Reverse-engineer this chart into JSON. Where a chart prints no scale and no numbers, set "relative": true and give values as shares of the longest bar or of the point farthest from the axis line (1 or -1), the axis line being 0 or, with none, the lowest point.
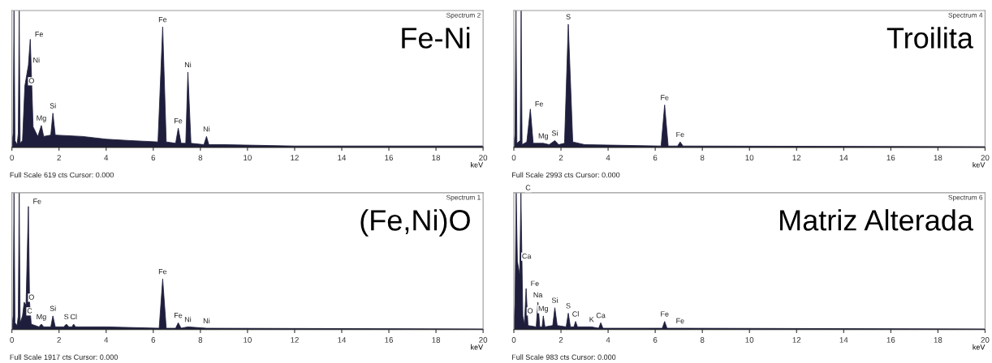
{
  "chart_data": [
    {
      "type": "area",
      "title": "Fe-Ni",
      "subtitle": "Spectrum 2",
      "xlabel": "keV",
      "relative": true,
      "xlim": [
        0,
        20
      ],
      "xticks": [
        0,
        2,
        4,
        6,
        8,
        10,
        12,
        14,
        16,
        18,
        20
      ],
      "tick_labels": "x",
      "grid": false,
      "legend": false,
      "series": [
        {
          "color": "#1e1e3c",
          "x": [
            0,
            0.05,
            0.09,
            0.13,
            0.22,
            0.27,
            0.31,
            0.35,
            0.45,
            0.55,
            0.7,
            0.78,
            0.9,
            1.1,
            1.25,
            1.35,
            1.65,
            1.74,
            1.84,
            3,
            4,
            5,
            6.2,
            6.4,
            6.55,
            6.95,
            7.06,
            7.18,
            7.38,
            7.47,
            7.6,
            8.15,
            8.26,
            8.36,
            9,
            12,
            20
          ],
          "values": [
            0.02,
            0.1,
            1,
            0.05,
            0.02,
            0.1,
            1,
            0.03,
            0.05,
            0.45,
            0.6,
            0.79,
            0.15,
            0.08,
            0.16,
            0.08,
            0.09,
            0.25,
            0.09,
            0.08,
            0.06,
            0.05,
            0.04,
            0.88,
            0.04,
            0.03,
            0.14,
            0.03,
            0.03,
            0.55,
            0.03,
            0.02,
            0.08,
            0.02,
            0.02,
            0.01,
            0.01
          ]
        }
      ],
      "annotations": [
        {
          "text": "Fe",
          "x": 0.78,
          "y": 0.79
        },
        {
          "text": "Ni",
          "x": 0.7,
          "y": 0.6
        },
        {
          "text": "O",
          "x": 0.52,
          "y": 0.45
        },
        {
          "text": "Mg",
          "x": 1.25,
          "y": 0.16
        },
        {
          "text": "Si",
          "x": 1.74,
          "y": 0.25
        },
        {
          "text": "Fe",
          "x": 6.4,
          "y": 0.88
        },
        {
          "text": "Fe",
          "x": 7.06,
          "y": 0.14
        },
        {
          "text": "Ni",
          "x": 7.47,
          "y": 0.55
        },
        {
          "text": "Ni",
          "x": 8.26,
          "y": 0.08
        },
        "Full Scale 619 cts Cursor: 0.000"
      ]
    },
    {
      "type": "area",
      "title": "Troilita",
      "subtitle": "Spectrum 4",
      "xlabel": "keV",
      "relative": true,
      "xlim": [
        0,
        20
      ],
      "xticks": [
        0,
        2,
        4,
        6,
        8,
        10,
        12,
        14,
        16,
        18,
        20
      ],
      "tick_labels": "x",
      "grid": false,
      "legend": false,
      "series": [
        {
          "color": "#1e1e3c",
          "x": [
            0,
            0.05,
            0.09,
            0.13,
            0.27,
            0.31,
            0.35,
            0.55,
            0.7,
            0.82,
            1.25,
            1.5,
            1.74,
            1.9,
            2.15,
            2.31,
            2.5,
            3,
            6.25,
            6.4,
            6.55,
            6.95,
            7.06,
            7.18,
            20
          ],
          "values": [
            0.01,
            0.1,
            1,
            0.03,
            0.05,
            1,
            0.02,
            0.04,
            0.28,
            0.03,
            0.03,
            0.02,
            0.05,
            0.02,
            0.03,
            0.9,
            0.04,
            0.02,
            0.01,
            0.31,
            0.01,
            0.01,
            0.04,
            0.01,
            0.005
          ]
        }
      ],
      "annotations": [
        {
          "text": "Fe",
          "x": 0.7,
          "y": 0.28
        },
        {
          "text": "Mg",
          "x": 1.25,
          "y": 0.03
        },
        {
          "text": "Si",
          "x": 1.74,
          "y": 0.05
        },
        {
          "text": "S",
          "x": 2.31,
          "y": 0.9
        },
        {
          "text": "Fe",
          "x": 6.4,
          "y": 0.31
        },
        {
          "text": "Fe",
          "x": 7.06,
          "y": 0.04
        },
        "Full Scale 2993 cts Cursor: 0.000"
      ]
    },
    {
      "type": "area",
      "title": "(Fe,Ni)O",
      "subtitle": "Spectrum 1",
      "xlabel": "keV",
      "relative": true,
      "xlim": [
        0,
        20
      ],
      "xticks": [
        0,
        2,
        4,
        6,
        8,
        10,
        12,
        14,
        16,
        18,
        20
      ],
      "tick_labels": "x",
      "grid": false,
      "legend": false,
      "series": [
        {
          "color": "#1e1e3c",
          "x": [
            0,
            0.05,
            0.09,
            0.13,
            0.22,
            0.27,
            0.31,
            0.35,
            0.45,
            0.52,
            0.6,
            0.7,
            0.75,
            0.82,
            1.15,
            1.25,
            1.35,
            1.65,
            1.74,
            1.84,
            2.2,
            2.31,
            2.42,
            2.55,
            2.62,
            2.7,
            4,
            6.25,
            6.4,
            6.55,
            6.95,
            7.06,
            7.18,
            7.47,
            8.26,
            20
          ],
          "values": [
            0.02,
            0.1,
            1,
            0.05,
            0.03,
            0.1,
            1,
            0.05,
            0.1,
            0.2,
            0.18,
            0.9,
            0.2,
            0.04,
            0.02,
            0.04,
            0.02,
            0.02,
            0.1,
            0.02,
            0.02,
            0.04,
            0.02,
            0.02,
            0.04,
            0.02,
            0.02,
            0.01,
            0.37,
            0.01,
            0.01,
            0.05,
            0.01,
            0.02,
            0.01,
            0.005
          ]
        }
      ],
      "annotations": [
        {
          "text": "C",
          "x": 0.45,
          "y": 0.1
        },
        {
          "text": "O",
          "x": 0.52,
          "y": 0.2
        },
        {
          "text": "Fe",
          "x": 0.7,
          "y": 0.9
        },
        {
          "text": "Mg",
          "x": 1.25,
          "y": 0.04
        },
        {
          "text": "Si",
          "x": 1.74,
          "y": 0.1
        },
        {
          "text": "S",
          "x": 2.31,
          "y": 0.04
        },
        {
          "text": "Cl",
          "x": 2.62,
          "y": 0.04
        },
        {
          "text": "Fe",
          "x": 6.4,
          "y": 0.37
        },
        {
          "text": "Fe",
          "x": 7.06,
          "y": 0.05
        },
        {
          "text": "Ni",
          "x": 7.47,
          "y": 0.02
        },
        {
          "text": "Ni",
          "x": 8.26,
          "y": 0.01
        },
        "Full Scale 1917 cts Cursor: 0.000"
      ]
    },
    {
      "type": "area",
      "title": "Matriz Alterada",
      "subtitle": "Spectrum 6",
      "xlabel": "keV",
      "relative": true,
      "xlim": [
        0,
        20
      ],
      "xticks": [
        0,
        2,
        4,
        6,
        8,
        10,
        12,
        14,
        16,
        18,
        20
      ],
      "tick_labels": "x",
      "grid": false,
      "legend": false,
      "series": [
        {
          "color": "#1e1e3c",
          "x": [
            0,
            0.05,
            0.1,
            0.15,
            0.25,
            0.3,
            0.38,
            0.45,
            0.52,
            0.6,
            0.95,
            1.02,
            1.1,
            1.2,
            1.25,
            1.32,
            1.65,
            1.74,
            1.84,
            2.22,
            2.31,
            2.4,
            2.55,
            2.62,
            2.7,
            3.3,
            3.6,
            3.69,
            3.78,
            6.3,
            6.4,
            6.5,
            7.06,
            20
          ],
          "values": [
            0.02,
            0.2,
            1,
            0.5,
            0.4,
            1,
            0.1,
            0.04,
            0.3,
            0.03,
            0.02,
            0.2,
            0.02,
            0.02,
            0.1,
            0.02,
            0.03,
            0.16,
            0.03,
            0.02,
            0.12,
            0.02,
            0.02,
            0.06,
            0.02,
            0.02,
            0.01,
            0.05,
            0.01,
            0.01,
            0.06,
            0.01,
            0.01,
            0.005
          ]
        }
      ],
      "annotations": [
        {
          "text": "C",
          "x": 0.3,
          "y": 1
        },
        {
          "text": "Ca",
          "x": 0.15,
          "y": 0.5
        },
        {
          "text": "O",
          "x": 0.38,
          "y": 0.1
        },
        {
          "text": "Fe",
          "x": 0.52,
          "y": 0.3
        },
        {
          "text": "Na",
          "x": 1.02,
          "y": 0.2
        },
        {
          "text": "Mg",
          "x": 1.25,
          "y": 0.1
        },
        {
          "text": "Si",
          "x": 1.74,
          "y": 0.16
        },
        {
          "text": "S",
          "x": 2.31,
          "y": 0.12
        },
        {
          "text": "Cl",
          "x": 2.62,
          "y": 0.06
        },
        {
          "text": "K",
          "x": 3.3,
          "y": 0.02
        },
        {
          "text": "Ca",
          "x": 3.69,
          "y": 0.05
        },
        {
          "text": "Fe",
          "x": 6.4,
          "y": 0.06
        },
        {
          "text": "Fe",
          "x": 7.06,
          "y": 0.01
        },
        "Full Scale 983 cts Cursor: 0.000"
      ]
    }
  ]
}
